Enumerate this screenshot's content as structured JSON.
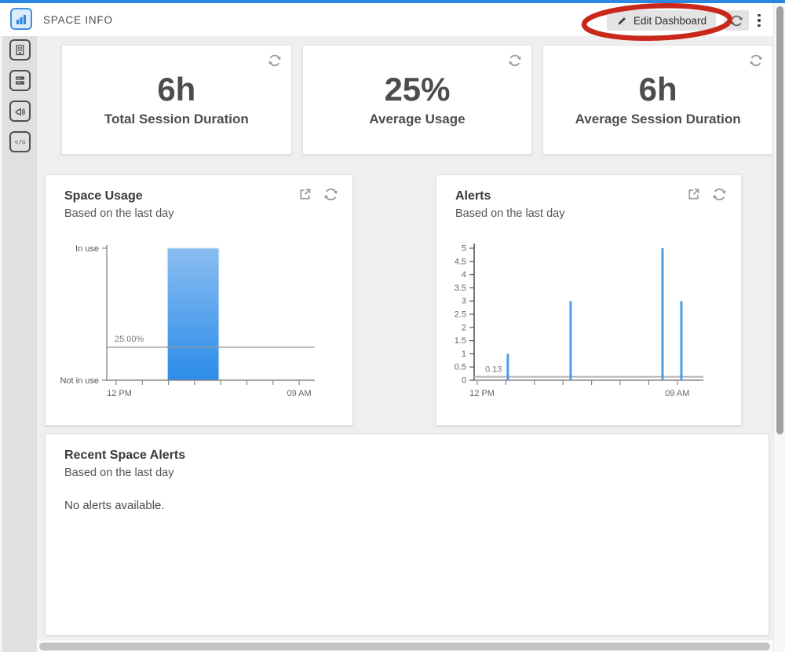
{
  "header": {
    "title": "SPACE INFO",
    "edit_button": "Edit Dashboard"
  },
  "sidebar": {
    "active_icon": "bar-chart-icon",
    "items": [
      {
        "icon": "building-icon"
      },
      {
        "icon": "rooms-list-icon"
      },
      {
        "icon": "announcement-icon"
      },
      {
        "icon": "code-icon"
      }
    ]
  },
  "stat_cards": [
    {
      "value": "6h",
      "label": "Total Session Duration"
    },
    {
      "value": "25%",
      "label": "Average Usage"
    },
    {
      "value": "6h",
      "label": "Average Session Duration"
    }
  ],
  "recent_alerts": {
    "title": "Recent Space Alerts",
    "subtitle": "Based on the last day",
    "empty_message": "No alerts available."
  },
  "colors": {
    "accent": "#2e87de",
    "annotation_red": "#c9271a",
    "bar_gradient_top": "#8abdf1",
    "bar_gradient_bottom": "#2b8ce9",
    "spike_blue": "#4d9ee9"
  },
  "chart_data": [
    {
      "id": "space-usage",
      "type": "bar",
      "title": "Space Usage",
      "subtitle": "Based on the last day",
      "x_axis": {
        "start_label": "12 PM",
        "end_label": "09 AM",
        "tick_count": 8
      },
      "y_axis": {
        "categories": [
          "In use",
          "Not in use"
        ]
      },
      "bars": [
        {
          "x_frac": 0.292,
          "width_frac": 0.247,
          "value": "In use"
        }
      ],
      "reference_line": {
        "label": "25.00%",
        "frac_from_bottom": 0.25
      },
      "bar_gradient": [
        "#8abdf1",
        "#2b8ce9"
      ],
      "legend": "none",
      "grid": "off"
    },
    {
      "id": "alerts",
      "type": "spike",
      "title": "Alerts",
      "subtitle": "Based on the last day",
      "x_axis": {
        "start_label": "12 PM",
        "end_label": "09 AM",
        "tick_count": 8
      },
      "y_axis": {
        "min": 0,
        "max": 5,
        "step": 0.5,
        "tick_labels": [
          "0",
          "0.5",
          "1",
          "1.5",
          "2",
          "2.5",
          "3",
          "3.5",
          "4",
          "4.5",
          "5"
        ]
      },
      "spikes": [
        {
          "x_frac": 0.147,
          "value": 1
        },
        {
          "x_frac": 0.421,
          "value": 3
        },
        {
          "x_frac": 0.822,
          "value": 5
        },
        {
          "x_frac": 0.904,
          "value": 3
        }
      ],
      "reference_line": {
        "label": "0.13",
        "value": 0.13
      },
      "spike_color": "#4d9ee9",
      "legend": "none",
      "grid": "off"
    }
  ]
}
